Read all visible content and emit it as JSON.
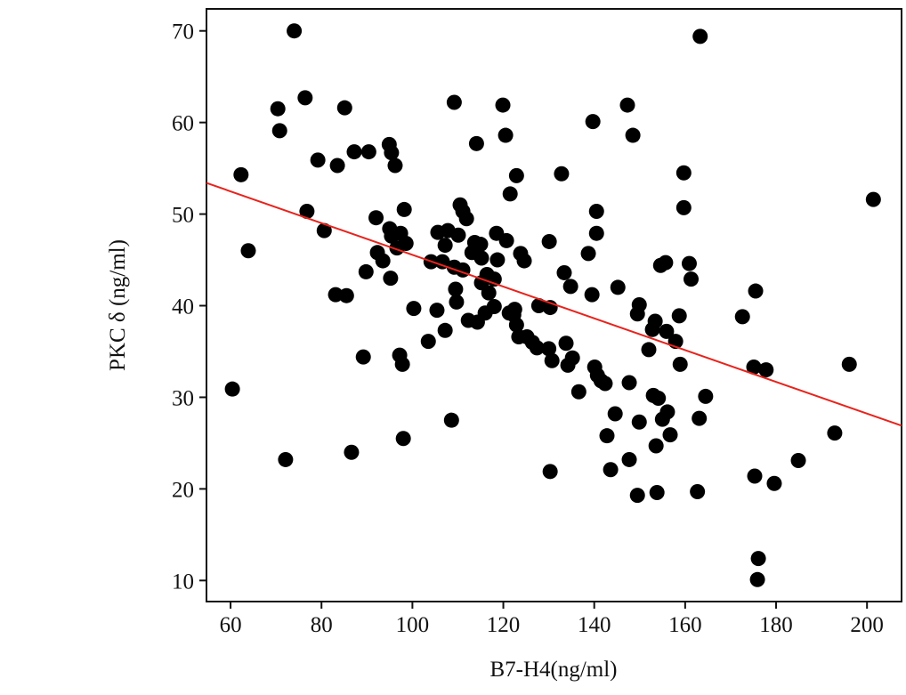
{
  "chart_data": {
    "type": "scatter",
    "title": "",
    "xlabel": "B7-H4(ng/ml)",
    "ylabel": "PKC δ (ng/ml)",
    "xlim": [
      54.7,
      207.6
    ],
    "ylim": [
      7.7,
      72.4
    ],
    "xticks": [
      60,
      80,
      100,
      120,
      140,
      160,
      180,
      200
    ],
    "yticks": [
      10,
      20,
      30,
      40,
      50,
      60,
      70
    ],
    "grid": false,
    "colors": {
      "points": "#000000",
      "fit_line": "#e8231c"
    },
    "fit_line": {
      "x": [
        54.7,
        207.6
      ],
      "y": [
        53.4,
        26.9
      ]
    },
    "points": [
      [
        60.4,
        30.9
      ],
      [
        62.3,
        54.3
      ],
      [
        63.9,
        46.0
      ],
      [
        70.4,
        61.5
      ],
      [
        70.8,
        59.1
      ],
      [
        72.1,
        23.2
      ],
      [
        74.0,
        70.0
      ],
      [
        76.4,
        62.7
      ],
      [
        76.8,
        50.3
      ],
      [
        79.2,
        55.9
      ],
      [
        80.6,
        48.2
      ],
      [
        83.5,
        55.3
      ],
      [
        83.1,
        41.2
      ],
      [
        85.5,
        41.1
      ],
      [
        85.1,
        61.6
      ],
      [
        86.6,
        24.0
      ],
      [
        87.2,
        56.8
      ],
      [
        89.2,
        34.4
      ],
      [
        89.8,
        43.7
      ],
      [
        90.4,
        56.8
      ],
      [
        92.0,
        49.6
      ],
      [
        92.3,
        45.8
      ],
      [
        93.5,
        44.9
      ],
      [
        94.9,
        57.6
      ],
      [
        95.4,
        56.7
      ],
      [
        96.2,
        55.3
      ],
      [
        95.0,
        48.4
      ],
      [
        95.4,
        47.6
      ],
      [
        95.2,
        43.0
      ],
      [
        96.6,
        46.3
      ],
      [
        97.2,
        34.6
      ],
      [
        97.8,
        33.6
      ],
      [
        97.4,
        47.9
      ],
      [
        98.2,
        50.5
      ],
      [
        98.6,
        46.8
      ],
      [
        98.0,
        25.5
      ],
      [
        100.3,
        39.7
      ],
      [
        103.5,
        36.1
      ],
      [
        104.1,
        44.8
      ],
      [
        105.4,
        39.5
      ],
      [
        105.6,
        48.0
      ],
      [
        106.6,
        44.8
      ],
      [
        107.2,
        46.6
      ],
      [
        107.2,
        37.3
      ],
      [
        107.8,
        48.2
      ],
      [
        108.6,
        27.5
      ],
      [
        109.2,
        62.2
      ],
      [
        109.2,
        44.2
      ],
      [
        109.5,
        41.8
      ],
      [
        109.7,
        40.4
      ],
      [
        110.1,
        47.7
      ],
      [
        110.5,
        51.0
      ],
      [
        111.1,
        50.3
      ],
      [
        111.1,
        43.9
      ],
      [
        111.9,
        49.5
      ],
      [
        112.3,
        38.4
      ],
      [
        113.1,
        45.8
      ],
      [
        113.7,
        46.9
      ],
      [
        114.1,
        57.7
      ],
      [
        114.3,
        38.2
      ],
      [
        115.0,
        46.7
      ],
      [
        115.2,
        45.2
      ],
      [
        115.2,
        42.5
      ],
      [
        116.0,
        39.2
      ],
      [
        116.4,
        43.4
      ],
      [
        116.8,
        41.4
      ],
      [
        118.0,
        42.9
      ],
      [
        118.0,
        39.9
      ],
      [
        118.5,
        47.9
      ],
      [
        118.7,
        45.0
      ],
      [
        119.9,
        61.9
      ],
      [
        120.5,
        58.6
      ],
      [
        120.7,
        47.1
      ],
      [
        121.3,
        39.2
      ],
      [
        121.5,
        52.2
      ],
      [
        122.3,
        39.0
      ],
      [
        122.9,
        54.2
      ],
      [
        122.5,
        39.6
      ],
      [
        122.9,
        37.9
      ],
      [
        123.4,
        36.6
      ],
      [
        123.8,
        45.7
      ],
      [
        124.6,
        44.9
      ],
      [
        125.2,
        36.6
      ],
      [
        126.4,
        36.0
      ],
      [
        127.4,
        35.4
      ],
      [
        127.8,
        40.0
      ],
      [
        130.0,
        35.3
      ],
      [
        130.3,
        39.8
      ],
      [
        130.1,
        47.0
      ],
      [
        130.3,
        21.9
      ],
      [
        130.7,
        34.0
      ],
      [
        132.8,
        54.4
      ],
      [
        133.4,
        43.6
      ],
      [
        133.8,
        35.9
      ],
      [
        134.2,
        33.5
      ],
      [
        134.8,
        42.1
      ],
      [
        135.2,
        34.3
      ],
      [
        136.6,
        30.6
      ],
      [
        138.7,
        45.7
      ],
      [
        139.5,
        41.2
      ],
      [
        139.7,
        60.1
      ],
      [
        140.1,
        33.3
      ],
      [
        140.5,
        47.9
      ],
      [
        140.5,
        50.3
      ],
      [
        140.7,
        32.4
      ],
      [
        141.5,
        31.8
      ],
      [
        142.4,
        31.5
      ],
      [
        142.8,
        25.8
      ],
      [
        143.6,
        22.1
      ],
      [
        144.6,
        28.2
      ],
      [
        145.2,
        42.0
      ],
      [
        147.3,
        61.9
      ],
      [
        147.7,
        31.6
      ],
      [
        147.7,
        23.2
      ],
      [
        148.5,
        58.6
      ],
      [
        149.5,
        39.1
      ],
      [
        149.9,
        40.1
      ],
      [
        149.9,
        27.3
      ],
      [
        149.5,
        19.3
      ],
      [
        152.0,
        35.2
      ],
      [
        152.8,
        37.4
      ],
      [
        153.4,
        38.3
      ],
      [
        153.0,
        30.2
      ],
      [
        153.6,
        24.7
      ],
      [
        153.8,
        19.6
      ],
      [
        154.1,
        29.9
      ],
      [
        154.6,
        44.4
      ],
      [
        155.0,
        27.6
      ],
      [
        155.7,
        44.7
      ],
      [
        155.9,
        37.2
      ],
      [
        156.1,
        28.4
      ],
      [
        156.7,
        25.9
      ],
      [
        157.9,
        36.1
      ],
      [
        158.7,
        38.9
      ],
      [
        158.9,
        33.6
      ],
      [
        159.7,
        54.5
      ],
      [
        159.7,
        50.7
      ],
      [
        160.9,
        44.6
      ],
      [
        161.3,
        42.9
      ],
      [
        162.7,
        19.7
      ],
      [
        163.1,
        27.7
      ],
      [
        163.3,
        69.4
      ],
      [
        164.5,
        30.1
      ],
      [
        172.6,
        38.8
      ],
      [
        175.1,
        33.3
      ],
      [
        175.3,
        21.4
      ],
      [
        175.5,
        41.6
      ],
      [
        176.1,
        12.4
      ],
      [
        175.9,
        10.1
      ],
      [
        177.8,
        33.0
      ],
      [
        179.6,
        20.6
      ],
      [
        184.9,
        23.1
      ],
      [
        192.9,
        26.1
      ],
      [
        196.1,
        33.6
      ],
      [
        201.4,
        51.6
      ]
    ]
  }
}
